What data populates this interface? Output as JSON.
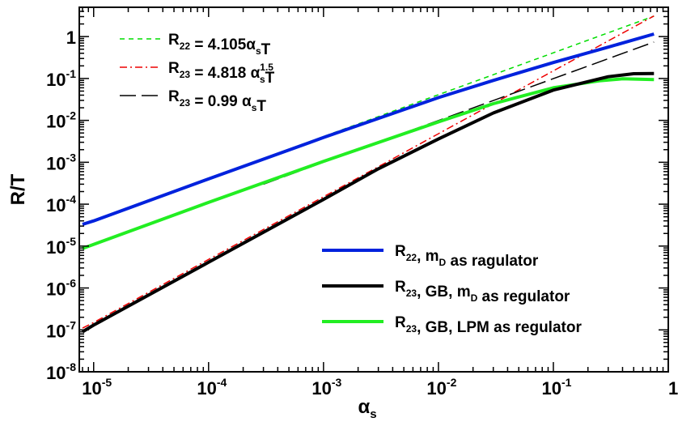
{
  "chart_data": {
    "type": "line",
    "title": "",
    "xlabel": {
      "base": "α",
      "sub": "s"
    },
    "ylabel": "R/T",
    "x_scale": "log",
    "y_scale": "log",
    "xlim": [
      7.5e-06,
      1.0
    ],
    "ylim": [
      1e-08,
      5
    ],
    "grid": false,
    "x_ticks": [
      {
        "value": 1e-05,
        "base": "10",
        "exp": "-5"
      },
      {
        "value": 0.0001,
        "base": "10",
        "exp": "-4"
      },
      {
        "value": 0.001,
        "base": "10",
        "exp": "-3"
      },
      {
        "value": 0.01,
        "base": "10",
        "exp": "-2"
      },
      {
        "value": 0.1,
        "base": "10",
        "exp": "-1"
      },
      {
        "value": 1,
        "base": "1",
        "exp": ""
      }
    ],
    "y_ticks": [
      {
        "value": 1e-08,
        "base": "10",
        "exp": "-8"
      },
      {
        "value": 1e-07,
        "base": "10",
        "exp": "-7"
      },
      {
        "value": 1e-06,
        "base": "10",
        "exp": "-6"
      },
      {
        "value": 1e-05,
        "base": "10",
        "exp": "-5"
      },
      {
        "value": 0.0001,
        "base": "10",
        "exp": "-4"
      },
      {
        "value": 0.001,
        "base": "10",
        "exp": "-3"
      },
      {
        "value": 0.01,
        "base": "10",
        "exp": "-2"
      },
      {
        "value": 0.1,
        "base": "10",
        "exp": "-1"
      },
      {
        "value": 1,
        "base": "1",
        "exp": ""
      }
    ],
    "series": [
      {
        "key": "r22_fit",
        "color": "#00dd00",
        "dash": "dashed",
        "width": 1.5,
        "legend": [
          {
            "t": "R"
          },
          {
            "t": "22",
            "sub": true
          },
          {
            "t": " = 4.105α"
          },
          {
            "t": "s",
            "sub": true
          },
          {
            "t": "T"
          }
        ],
        "x": [
          8e-06,
          1e-05,
          0.0001,
          0.001,
          0.01,
          0.1,
          0.75
        ],
        "y": [
          3.3e-05,
          4.1e-05,
          0.00041,
          0.0041,
          0.041,
          0.41,
          3.08
        ]
      },
      {
        "key": "r23_fit_15",
        "color": "#ee0000",
        "dash": "dashdot",
        "width": 1.5,
        "legend": [
          {
            "t": "R"
          },
          {
            "t": "23",
            "sub": true
          },
          {
            "t": " = 4.818 α"
          },
          {
            "t": "s",
            "sub": true,
            "sup": "1.5"
          },
          {
            "t": "T"
          }
        ],
        "x": [
          8e-06,
          1e-05,
          0.0001,
          0.001,
          0.01,
          0.1,
          0.75
        ],
        "y": [
          1.1e-07,
          1.5e-07,
          4.8e-06,
          0.00015,
          0.0048,
          0.152,
          3.1
        ]
      },
      {
        "key": "r23_fit_lin",
        "color": "#000000",
        "dash": "longdash",
        "width": 1.5,
        "legend": [
          {
            "t": "R"
          },
          {
            "t": "23",
            "sub": true
          },
          {
            "t": " = 0.99 α"
          },
          {
            "t": "s",
            "sub": true
          },
          {
            "t": "T"
          }
        ],
        "x": [
          0.0003,
          0.001,
          0.01,
          0.1,
          0.75
        ],
        "y": [
          0.0003,
          0.001,
          0.0099,
          0.099,
          0.74
        ]
      },
      {
        "key": "r22_md",
        "color": "#0022dd",
        "dash": "solid",
        "width": 4,
        "legend": [
          {
            "t": "R"
          },
          {
            "t": "22",
            "sub": true
          },
          {
            "t": ", m"
          },
          {
            "t": "D",
            "sub": true
          },
          {
            "t": " as ragulator"
          }
        ],
        "x": [
          8e-06,
          1e-05,
          0.0001,
          0.001,
          0.01,
          0.03,
          0.1,
          0.3,
          0.75
        ],
        "y": [
          3.3e-05,
          4e-05,
          0.0004,
          0.0039,
          0.035,
          0.09,
          0.24,
          0.56,
          1.15
        ]
      },
      {
        "key": "r23_gb_md",
        "color": "#000000",
        "dash": "solid",
        "width": 4,
        "legend": [
          {
            "t": "R"
          },
          {
            "t": "23",
            "sub": true
          },
          {
            "t": ", GB, m"
          },
          {
            "t": "D",
            "sub": true
          },
          {
            "t": " as regulator"
          }
        ],
        "x": [
          8e-06,
          1e-05,
          0.0001,
          0.001,
          0.003,
          0.01,
          0.03,
          0.1,
          0.3,
          0.5,
          0.75
        ],
        "y": [
          9e-08,
          1.3e-07,
          4.1e-06,
          0.00013,
          0.0007,
          0.0036,
          0.015,
          0.053,
          0.11,
          0.13,
          0.132
        ]
      },
      {
        "key": "r23_gb_lpm",
        "color": "#22ee22",
        "dash": "solid",
        "width": 4,
        "legend": [
          {
            "t": "R"
          },
          {
            "t": "23",
            "sub": true
          },
          {
            "t": ", GB,  LPM as regulator"
          }
        ],
        "x": [
          8e-06,
          1e-05,
          0.0001,
          0.001,
          0.01,
          0.03,
          0.1,
          0.25,
          0.4,
          0.75
        ],
        "y": [
          8.8e-06,
          1.1e-05,
          0.00011,
          0.00105,
          0.0092,
          0.025,
          0.06,
          0.088,
          0.098,
          0.094
        ]
      }
    ],
    "legend_groups": [
      {
        "position": "top-left",
        "series": [
          "r22_fit",
          "r23_fit_15",
          "r23_fit_lin"
        ]
      },
      {
        "position": "bottom-right",
        "series": [
          "r22_md",
          "r23_gb_md",
          "r23_gb_lpm"
        ]
      }
    ]
  }
}
